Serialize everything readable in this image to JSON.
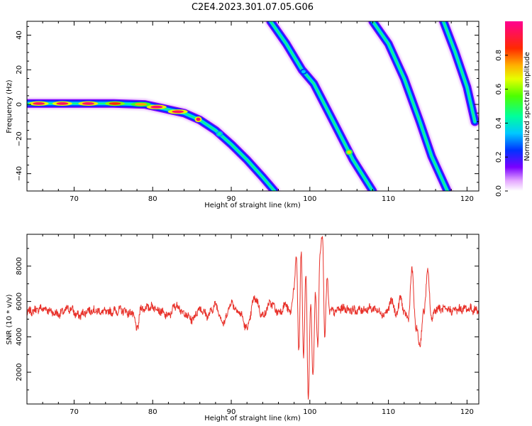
{
  "figure_title": "C2E4.2023.301.07.05.G06",
  "colors": {
    "snr_line": "#e8312a",
    "spectrogram_bg": "#ffffff"
  },
  "chart_data": [
    {
      "type": "heatmap",
      "title": "",
      "xlabel": "Height of straight line (km)",
      "ylabel": "Frequency (Hz)",
      "xlim": [
        64,
        121.5
      ],
      "ylim": [
        -50,
        48
      ],
      "x_ticks": [
        70,
        80,
        90,
        100,
        110,
        120
      ],
      "y_ticks": [
        -40,
        -20,
        0,
        20,
        40
      ],
      "colorbar": {
        "label": "Normalized spectral amplitude",
        "ticks": [
          "0.0",
          "0.2",
          "0.4",
          "0.6",
          "0.8"
        ],
        "range": [
          0,
          1
        ],
        "colormap": "hsv-like (white/violet → blue → cyan → green → yellow → red → magenta)"
      },
      "traces": [
        {
          "segment": "flat then descending",
          "x": [
            64,
            70,
            75,
            79,
            81,
            84,
            86,
            88,
            90,
            92,
            94,
            95.5
          ],
          "y": [
            0.5,
            0.5,
            0.5,
            0,
            -2,
            -5,
            -9,
            -15,
            -23,
            -32,
            -42,
            -50
          ],
          "peaks": [
            {
              "x": 65.5,
              "amp": 0.95
            },
            {
              "x": 68.5,
              "amp": 0.95
            },
            {
              "x": 71.8,
              "amp": 0.97
            },
            {
              "x": 75.2,
              "amp": 0.85
            },
            {
              "x": 78.5,
              "amp": 0.75
            },
            {
              "x": 80.5,
              "amp": 0.97
            },
            {
              "x": 83.2,
              "amp": 0.95
            },
            {
              "x": 85.8,
              "amp": 0.95
            },
            {
              "x": 88.5,
              "amp": 0.45
            }
          ]
        },
        {
          "segment": "descending",
          "x": [
            95,
            97,
            99,
            100.5,
            103,
            105.5,
            108
          ],
          "y": [
            48,
            35,
            20,
            12,
            -10,
            -32,
            -50
          ],
          "peaks": [
            {
              "x": 99.2,
              "amp": 0.35
            },
            {
              "x": 105,
              "amp": 0.7
            }
          ]
        },
        {
          "segment": "descending",
          "x": [
            108,
            110,
            112,
            114,
            115.5,
            117.5
          ],
          "y": [
            48,
            35,
            15,
            -10,
            -30,
            -50
          ],
          "peaks": []
        },
        {
          "segment": "descending",
          "x": [
            117,
            118.5,
            120,
            121
          ],
          "y": [
            48,
            30,
            10,
            -10
          ],
          "peaks": []
        }
      ]
    },
    {
      "type": "line",
      "title": "",
      "xlabel": "Height of straight line (km)",
      "ylabel": "SNR (10 * v/v)",
      "xlim": [
        64,
        121.5
      ],
      "ylim": [
        200,
        9800
      ],
      "x_ticks": [
        70,
        80,
        90,
        100,
        110,
        120
      ],
      "y_ticks": [
        2000,
        4000,
        6000,
        8000
      ],
      "series": [
        {
          "x": [
            64,
            66,
            68,
            69.5,
            70.5,
            72,
            74,
            76,
            77.5,
            78,
            78.5,
            80,
            82,
            83,
            84,
            85,
            86,
            87,
            88,
            89,
            90,
            91,
            92,
            93,
            94,
            95,
            96,
            97,
            97.5,
            98,
            98.3,
            98.6,
            98.9,
            99.2,
            99.5,
            99.8,
            100.1,
            100.4,
            100.7,
            101,
            101.3,
            101.6,
            101.9,
            102.2,
            102.5,
            103,
            104,
            106,
            108,
            109.5,
            110.5,
            111,
            111.5,
            112,
            112.5,
            113,
            113.5,
            114,
            114.5,
            115,
            115.5,
            116,
            118,
            120,
            121.5
          ],
          "y": [
            5400,
            5600,
            5300,
            5600,
            5200,
            5500,
            5400,
            5500,
            5300,
            4400,
            5600,
            5700,
            5200,
            5800,
            5300,
            5000,
            5600,
            5200,
            5800,
            4800,
            5900,
            5400,
            4500,
            6200,
            5200,
            5900,
            5400,
            5800,
            5300,
            6800,
            8500,
            3200,
            8700,
            3000,
            7500,
            600,
            5800,
            1800,
            6400,
            3500,
            8900,
            9800,
            4200,
            7200,
            5500,
            5400,
            5600,
            5500,
            5600,
            5300,
            6000,
            5200,
            6200,
            5400,
            5000,
            7700,
            4500,
            3600,
            5400,
            7600,
            5000,
            5600,
            5500,
            5600,
            5500
          ]
        }
      ]
    }
  ]
}
